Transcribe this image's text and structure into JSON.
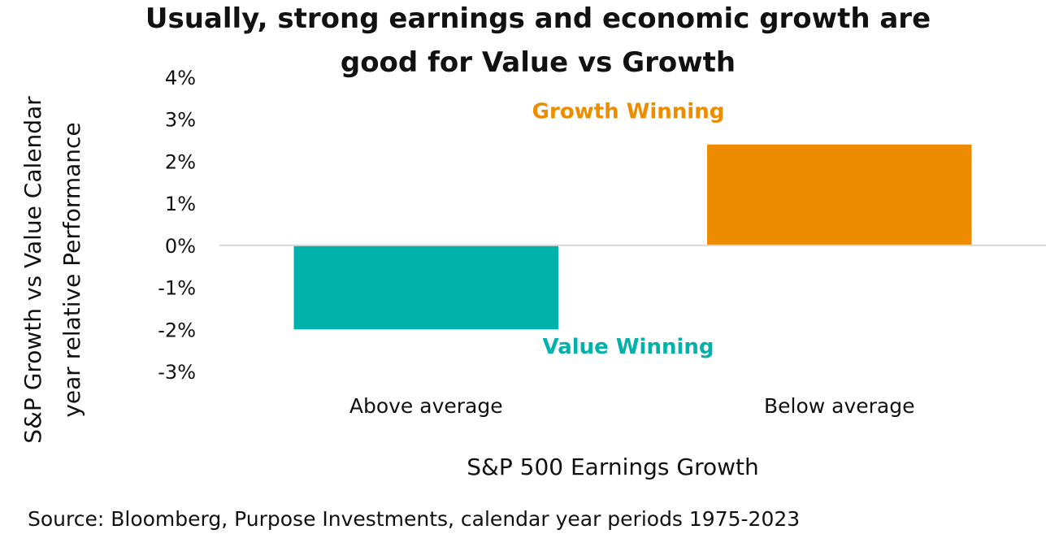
{
  "chart_data": {
    "type": "bar",
    "title_lines": [
      "Usually, strong earnings and economic growth are",
      "good for Value vs Growth"
    ],
    "categories": [
      "Above average",
      "Below average"
    ],
    "values": [
      -2.0,
      2.4
    ],
    "value_unit": "%",
    "bar_colors": [
      "#00B2A9",
      "#EE8C00"
    ],
    "xlabel": "S&P 500 Earnings Growth",
    "ylabel_lines": [
      "S&P Growth vs Value  Calendar",
      "year relative Performance"
    ],
    "ylim": [
      -3,
      4
    ],
    "yticks": [
      4,
      3,
      2,
      1,
      0,
      -1,
      -2,
      -3
    ],
    "ytick_labels": [
      "4%",
      "3%",
      "2%",
      "1%",
      "0%",
      "-1%",
      "-2%",
      "-3%"
    ],
    "grid": false,
    "zero_line": true,
    "annotations": [
      {
        "text": "Growth Winning",
        "color": "#EE8C00",
        "y": 3.2
      },
      {
        "text": "Value Winning",
        "color": "#00B2A9",
        "y": -2.4
      }
    ],
    "source": "Source: Bloomberg, Purpose Investments, calendar year periods 1975-2023"
  }
}
